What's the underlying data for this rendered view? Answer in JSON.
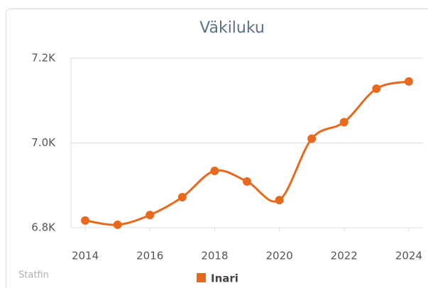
{
  "chart_data": {
    "type": "line",
    "title": "Väkiluku",
    "source": "Statfin",
    "x": [
      2014,
      2015,
      2016,
      2017,
      2018,
      2019,
      2020,
      2021,
      2022,
      2023,
      2024
    ],
    "series": [
      {
        "name": "Inari",
        "color": "#e8691e",
        "values": [
          6817,
          6807,
          6830,
          6872,
          6934,
          6909,
          6865,
          7010,
          7049,
          7128,
          7145
        ]
      }
    ],
    "xlim": [
      2013.56,
      2024.44
    ],
    "xticks": [
      2014,
      2016,
      2018,
      2020,
      2022,
      2024
    ],
    "ylim": [
      6800,
      7200
    ],
    "yticks": [
      {
        "value": 6800,
        "label": "6.8K"
      },
      {
        "value": 7000,
        "label": "7.0K"
      },
      {
        "value": 7200,
        "label": "7.2K"
      }
    ],
    "grid": true,
    "legend": "bottom"
  }
}
